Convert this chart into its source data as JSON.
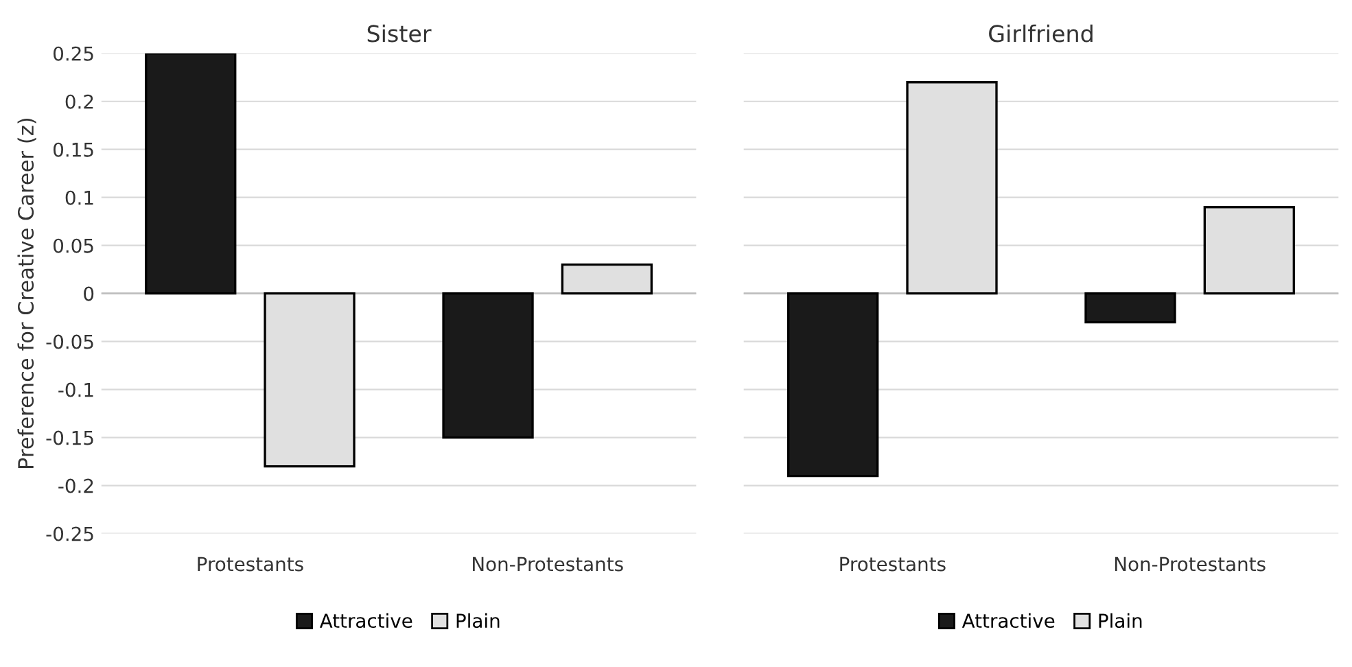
{
  "chart_data": [
    {
      "type": "bar",
      "title": "Sister",
      "ylabel": "Preference for Creative Career (z)",
      "categories": [
        "Protestants",
        "Non-Protestants"
      ],
      "series": [
        {
          "name": "Attractive",
          "color": "#1a1a1a",
          "values": [
            0.25,
            -0.15
          ]
        },
        {
          "name": "Plain",
          "color": "#e0e0e0",
          "values": [
            -0.18,
            0.03
          ]
        }
      ],
      "ylim": [
        -0.25,
        0.25
      ],
      "yticks": [
        -0.25,
        -0.2,
        -0.15,
        -0.1,
        -0.05,
        0,
        0.05,
        0.1,
        0.15,
        0.2,
        0.25
      ],
      "grid": "y",
      "legend": "bottom"
    },
    {
      "type": "bar",
      "title": "Girlfriend",
      "categories": [
        "Protestants",
        "Non-Protestants"
      ],
      "series": [
        {
          "name": "Attractive",
          "color": "#1a1a1a",
          "values": [
            -0.19,
            -0.03
          ]
        },
        {
          "name": "Plain",
          "color": "#e0e0e0",
          "values": [
            0.22,
            0.09
          ]
        }
      ],
      "ylim": [
        -0.25,
        0.25
      ],
      "yticks": [
        -0.25,
        -0.2,
        -0.15,
        -0.1,
        -0.05,
        0,
        0.05,
        0.1,
        0.15,
        0.2,
        0.25
      ],
      "grid": "y",
      "legend": "bottom",
      "tick_labels": "x"
    }
  ]
}
